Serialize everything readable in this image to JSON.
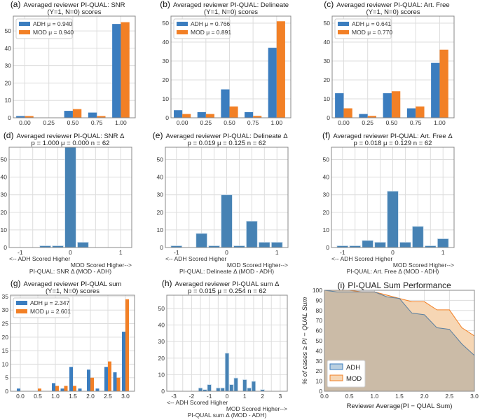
{
  "colors": {
    "adh": "#3b7dbf",
    "mod": "#f28026",
    "delta": "#4682b4",
    "adh_fill": "#b9cfe0",
    "mod_fill": "#f6d6b4",
    "overlap": "#cbbba7"
  },
  "chart_data": [
    {
      "id": "a",
      "panel_label": "(a)",
      "type": "bar",
      "title": "Averaged reviewer PI-QUAL: SNR",
      "subtitle": "(Y=1, N=0) scores",
      "categories": [
        "0.00",
        "0.25",
        "0.50",
        "0.75",
        "1.00"
      ],
      "x": [
        0,
        0.25,
        0.5,
        0.75,
        1
      ],
      "xlim": [
        -0.12,
        1.15
      ],
      "ylim": [
        0,
        58.5
      ],
      "yticks": [
        0,
        10,
        20,
        30,
        40,
        50
      ],
      "legend": "top-left",
      "series": [
        {
          "name": "ADH",
          "legend": "ADH μ = 0.940",
          "values": [
            1,
            0,
            4,
            3,
            54
          ]
        },
        {
          "name": "MOD",
          "legend": "MOD μ = 0.940",
          "values": [
            1,
            0,
            5,
            1,
            55
          ]
        }
      ]
    },
    {
      "id": "b",
      "panel_label": "(b)",
      "type": "bar",
      "title": "Averaged reviewer PI-QUAL: Delineate",
      "subtitle": "(Y=1, N=0) scores",
      "categories": [
        "0.00",
        "0.25",
        "0.50",
        "0.75",
        "1.00"
      ],
      "x": [
        0,
        0.25,
        0.5,
        0.75,
        1
      ],
      "xlim": [
        -0.12,
        1.15
      ],
      "ylim": [
        0,
        53.7
      ],
      "yticks": [
        0,
        10,
        20,
        30,
        40,
        50
      ],
      "legend": "top-left",
      "series": [
        {
          "name": "ADH",
          "legend": "ADH μ = 0.766",
          "values": [
            4,
            3,
            15,
            3,
            37
          ]
        },
        {
          "name": "MOD",
          "legend": "MOD μ = 0.891",
          "values": [
            2,
            2,
            6,
            1,
            51
          ]
        }
      ]
    },
    {
      "id": "c",
      "panel_label": "(c)",
      "type": "bar",
      "title": "Averaged reviewer PI-QUAL: Art. Free",
      "subtitle": "(Y=1, N=0) scores",
      "categories": [
        "0.00",
        "0.25",
        "0.50",
        "0.75",
        "1.00"
      ],
      "x": [
        0,
        0.25,
        0.5,
        0.75,
        1
      ],
      "xlim": [
        -0.12,
        1.15
      ],
      "ylim": [
        0,
        53.7
      ],
      "yticks": [
        0,
        10,
        20,
        30,
        40,
        50
      ],
      "legend": "top-left",
      "series": [
        {
          "name": "ADH",
          "legend": "ADH μ = 0.641",
          "values": [
            13,
            2,
            13,
            5,
            29
          ]
        },
        {
          "name": "MOD",
          "legend": "MOD μ = 0.770",
          "values": [
            5,
            1,
            14,
            6,
            36
          ]
        }
      ]
    },
    {
      "id": "d",
      "panel_label": "(d)",
      "type": "bar",
      "title": "Averaged reviewer PI-QUAL: SNR Δ",
      "subtitle": "p = 1.000 μ = 0.000 n = 62",
      "xlabel": "PI-QUAL: SNR Δ (MOD - ADH)",
      "left_note": "<-- ADH Scored Higher",
      "right_note": "MOD Scored Higher-->",
      "x": [
        -0.5,
        -0.25,
        0,
        0.25
      ],
      "values": [
        1,
        1,
        57,
        3
      ],
      "xticks": [
        "-1",
        "0",
        "1"
      ],
      "xlim": [
        -1.22,
        1.22
      ],
      "ylim": [
        0,
        57
      ],
      "yticks": [
        0,
        10,
        20,
        30,
        40,
        50
      ],
      "grid_step": 0.25,
      "bar_width": 0.22
    },
    {
      "id": "e",
      "panel_label": "(e)",
      "type": "bar",
      "title": "Averaged reviewer PI-QUAL: Delineate Δ",
      "subtitle": "p = 0.019 μ = 0.125 n = 62",
      "xlabel": "PI-QUAL: Delineate Δ (MOD - ADH)",
      "left_note": "<-- ADH Scored Higher",
      "right_note": "MOD Scored Higher-->",
      "x": [
        -1,
        -0.5,
        -0.25,
        0,
        0.25,
        0.5,
        0.75,
        1
      ],
      "values": [
        1,
        8,
        1,
        30,
        1,
        15,
        3,
        3
      ],
      "xticks": [
        "-1",
        "0",
        "1"
      ],
      "xlim": [
        -1.22,
        1.22
      ],
      "ylim": [
        0,
        57
      ],
      "yticks": [
        0,
        10,
        20,
        30,
        40,
        50
      ],
      "grid_step": 0.25,
      "bar_width": 0.22
    },
    {
      "id": "f",
      "panel_label": "(f)",
      "type": "bar",
      "title": "Averaged reviewer PI-QUAL: Art. Free Δ",
      "subtitle": "p = 0.018 μ = 0.129 n = 62",
      "xlabel": "PI-QUAL: Art. Free Δ (MOD - ADH)",
      "left_note": "<-- ADH Scored Higher",
      "right_note": "MOD Scored Higher-->",
      "x": [
        -1,
        -0.75,
        -0.5,
        -0.25,
        0,
        0.25,
        0.5,
        0.75,
        1
      ],
      "values": [
        1,
        1,
        4,
        3,
        32,
        3,
        12,
        1,
        5
      ],
      "xticks": [
        "-1",
        "0",
        "1"
      ],
      "xlim": [
        -1.22,
        1.22
      ],
      "ylim": [
        0,
        57
      ],
      "yticks": [
        0,
        10,
        20,
        30,
        40,
        50
      ],
      "grid_step": 0.25,
      "bar_width": 0.22
    },
    {
      "id": "g",
      "panel_label": "(g)",
      "type": "bar",
      "title": "Averaged reviewer PI-QUAL sum",
      "subtitle": "(Y=1, N=0) scores",
      "categories": [
        "0.0",
        "0.5",
        "1.0",
        "1.5",
        "2.0",
        "2.5",
        "3.0"
      ],
      "x": [
        0,
        0.5,
        1,
        1.25,
        1.5,
        1.75,
        2,
        2.25,
        2.5,
        2.75,
        3
      ],
      "xlim": [
        -0.28,
        3.26
      ],
      "ylim": [
        0,
        35.5
      ],
      "yticks": [
        0,
        5,
        10,
        15,
        20,
        25,
        30,
        35
      ],
      "legend": "top-left",
      "series": [
        {
          "name": "ADH",
          "legend": "ADH μ = 2.347",
          "values": [
            1,
            0,
            3,
            1,
            9,
            1,
            8,
            1,
            9,
            7,
            22
          ]
        },
        {
          "name": "MOD",
          "legend": "MOD μ = 2.601",
          "values": [
            0,
            1,
            2,
            2,
            2,
            0,
            5,
            0,
            11,
            5,
            34
          ]
        }
      ]
    },
    {
      "id": "h",
      "panel_label": "(h)",
      "type": "bar",
      "title": "Averaged reviewer PI-QUAL sum Δ",
      "subtitle": "p = 0.015 μ = 0.254 n = 62",
      "xlabel": "PI-QUAL sum Δ (MOD - ADH)",
      "left_note": "<-- ADH Scored Higher",
      "right_note": "MOD Scored Higher-->",
      "x": [
        -1.5,
        -1.25,
        -1,
        -0.5,
        -0.25,
        0,
        0.25,
        0.5,
        1,
        1.25,
        1.5,
        2
      ],
      "values": [
        2,
        1,
        4,
        2,
        2,
        23,
        4,
        8,
        7,
        2,
        6,
        1
      ],
      "xticks": [
        "-3",
        "-2",
        "-1",
        "0",
        "1",
        "2",
        "3"
      ],
      "xlim": [
        -3.4,
        3.4
      ],
      "ylim": [
        0,
        58
      ],
      "yticks": [
        0,
        10,
        20,
        30,
        40,
        50
      ],
      "grid_step": 0.5,
      "bar_width": 0.22
    },
    {
      "id": "i",
      "panel_label": "(i)",
      "type": "area",
      "title": "PI-QUAL Sum Performance",
      "xlabel": "Reviewer Average(PI − QUAL Sum)",
      "ylabel": "% of cases ≥ PI − QUAL Sum",
      "xlim": [
        0,
        3
      ],
      "ylim": [
        0,
        100
      ],
      "xticks": [
        "0.0",
        "0.5",
        "1.0",
        "1.5",
        "2.0",
        "2.5",
        "3.0"
      ],
      "yticks": [
        0,
        10,
        20,
        30,
        40,
        50,
        60,
        70,
        80,
        90,
        100
      ],
      "legend": "bottom-left",
      "x": [
        0,
        0.25,
        0.5,
        0.75,
        1,
        1.25,
        1.5,
        1.75,
        2,
        2.25,
        2.5,
        2.75,
        3
      ],
      "series": [
        {
          "name": "ADH",
          "values": [
            100,
            98.4,
            98.4,
            98.4,
            98.4,
            93.5,
            91.9,
            77.4,
            75.8,
            62.9,
            61.3,
            46.8,
            35.5
          ]
        },
        {
          "name": "MOD",
          "values": [
            100,
            100,
            100,
            98.4,
            98.4,
            95.2,
            91.9,
            88.7,
            88.7,
            80.6,
            80.6,
            62.9,
            54.8
          ]
        }
      ]
    }
  ]
}
